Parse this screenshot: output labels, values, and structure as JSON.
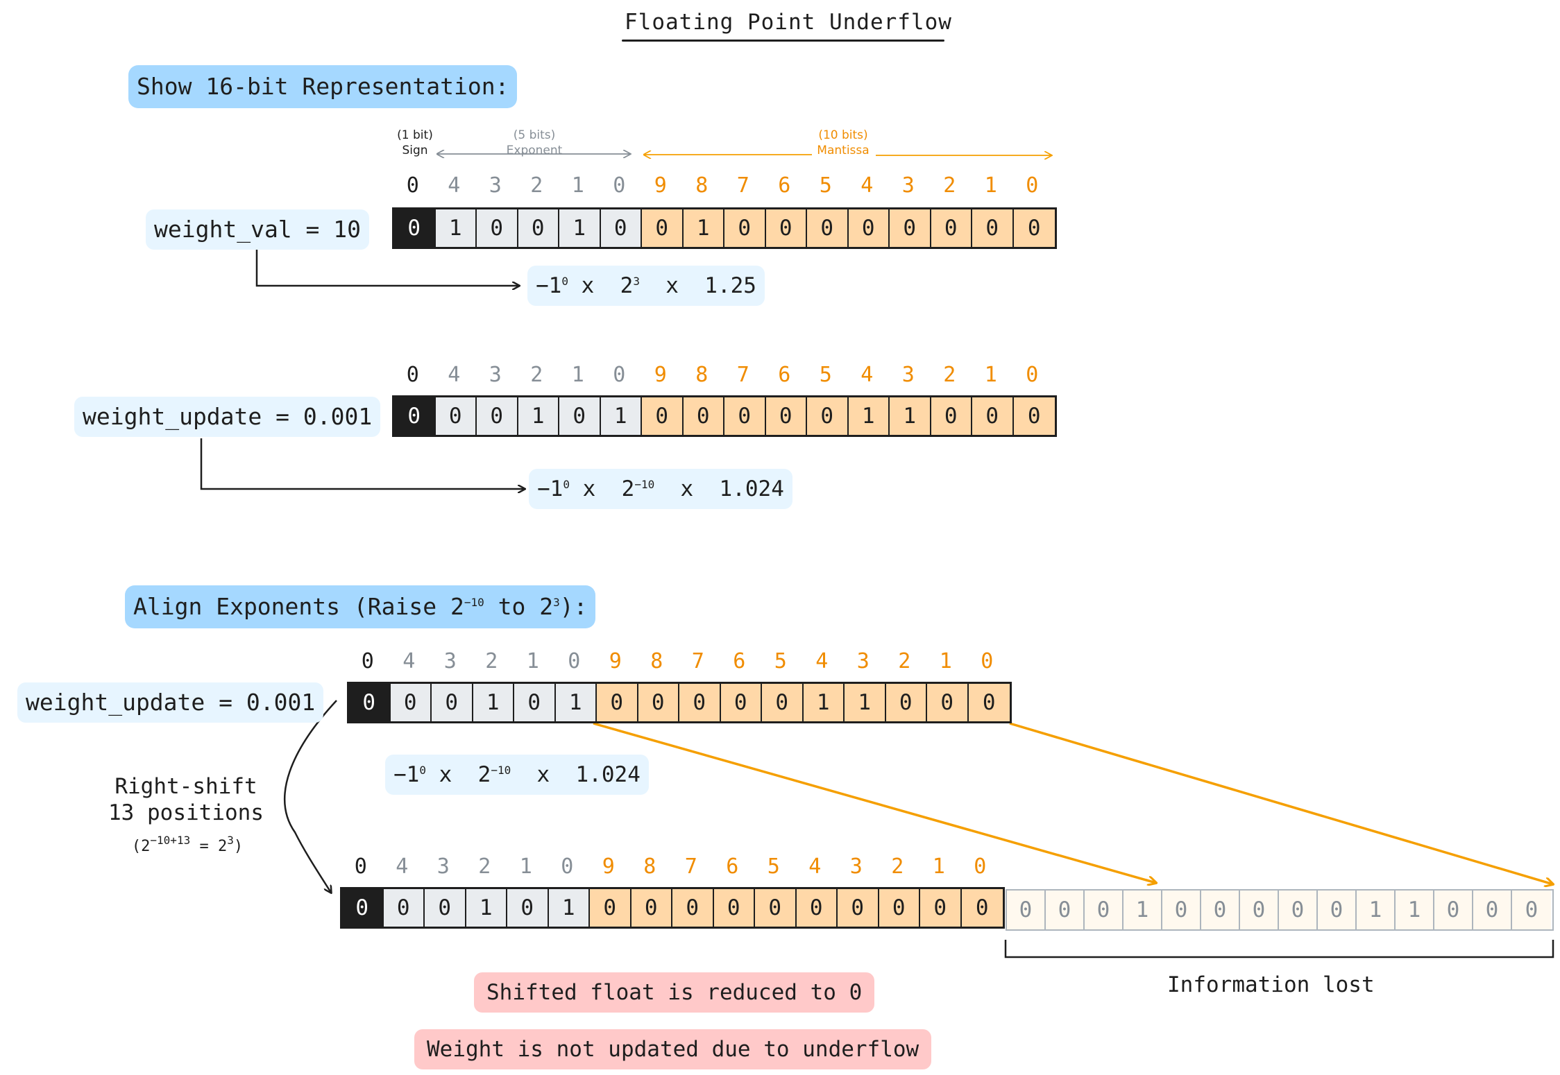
{
  "title": "Floating Point Underflow",
  "section1": {
    "heading": "Show 16-bit Representation:"
  },
  "field_headers": {
    "sign": {
      "bits": "(1 bit)",
      "name": "Sign"
    },
    "exponent": {
      "bits": "(5 bits)",
      "name": "Exponent"
    },
    "mantissa": {
      "bits": "(10 bits)",
      "name": "Mantissa"
    }
  },
  "bit_indices": {
    "sign": [
      "0"
    ],
    "exponent": [
      "4",
      "3",
      "2",
      "1",
      "0"
    ],
    "mantissa": [
      "9",
      "8",
      "7",
      "6",
      "5",
      "4",
      "3",
      "2",
      "1",
      "0"
    ]
  },
  "weight_val": {
    "label": "weight_val = 10",
    "bits": [
      "0",
      "1",
      "0",
      "0",
      "1",
      "0",
      "0",
      "1",
      "0",
      "0",
      "0",
      "0",
      "0",
      "0",
      "0",
      "0"
    ],
    "formula": {
      "base": "−1",
      "sign_exp": "0",
      "times1": "x",
      "two": "2",
      "exp": "3",
      "times2": "x",
      "mantissa": "1.25"
    }
  },
  "weight_update": {
    "label": "weight_update = 0.001",
    "bits": [
      "0",
      "0",
      "0",
      "1",
      "0",
      "1",
      "0",
      "0",
      "0",
      "0",
      "0",
      "1",
      "1",
      "0",
      "0",
      "0"
    ],
    "formula": {
      "base": "−1",
      "sign_exp": "0",
      "times1": "x",
      "two": "2",
      "exp": "−10",
      "times2": "x",
      "mantissa": "1.024"
    }
  },
  "section2": {
    "heading_prefix": "Align Exponents (Raise 2",
    "heading_exp1": "−10",
    "heading_mid": " to 2",
    "heading_exp2": "3",
    "heading_suffix": "):"
  },
  "aligned_update": {
    "label": "weight_update = 0.001",
    "bits": [
      "0",
      "0",
      "0",
      "1",
      "0",
      "1",
      "0",
      "0",
      "0",
      "0",
      "0",
      "1",
      "1",
      "0",
      "0",
      "0"
    ],
    "formula": {
      "base": "−1",
      "sign_exp": "0",
      "times1": "x",
      "two": "2",
      "exp": "−10",
      "times2": "x",
      "mantissa": "1.024"
    }
  },
  "shift": {
    "line1": "Right-shift",
    "line2": "13 positions",
    "note_open": "(2",
    "note_exp": "−10+13",
    "note_eq": " = 2",
    "note_exp2": "3",
    "note_close": ")"
  },
  "shifted": {
    "bits": [
      "0",
      "0",
      "0",
      "1",
      "0",
      "1",
      "0",
      "0",
      "0",
      "0",
      "0",
      "0",
      "0",
      "0",
      "0",
      "0"
    ],
    "lost_bits": [
      "0",
      "0",
      "0",
      "1",
      "0",
      "0",
      "0",
      "0",
      "0",
      "1",
      "1",
      "0",
      "0",
      "0"
    ]
  },
  "info_lost": "Information lost",
  "result1": "Shifted float is reduced to 0",
  "result2": "Weight is not updated due to underflow",
  "colors": {
    "sign": "#1e1e1e",
    "exponent": "#e9ecef",
    "mantissa": "#ffd8a8",
    "accent_orange": "#f08c00",
    "pill_blue": "#a5d8ff",
    "pill_light": "#e7f5ff",
    "pill_red": "#ffc9c9"
  }
}
